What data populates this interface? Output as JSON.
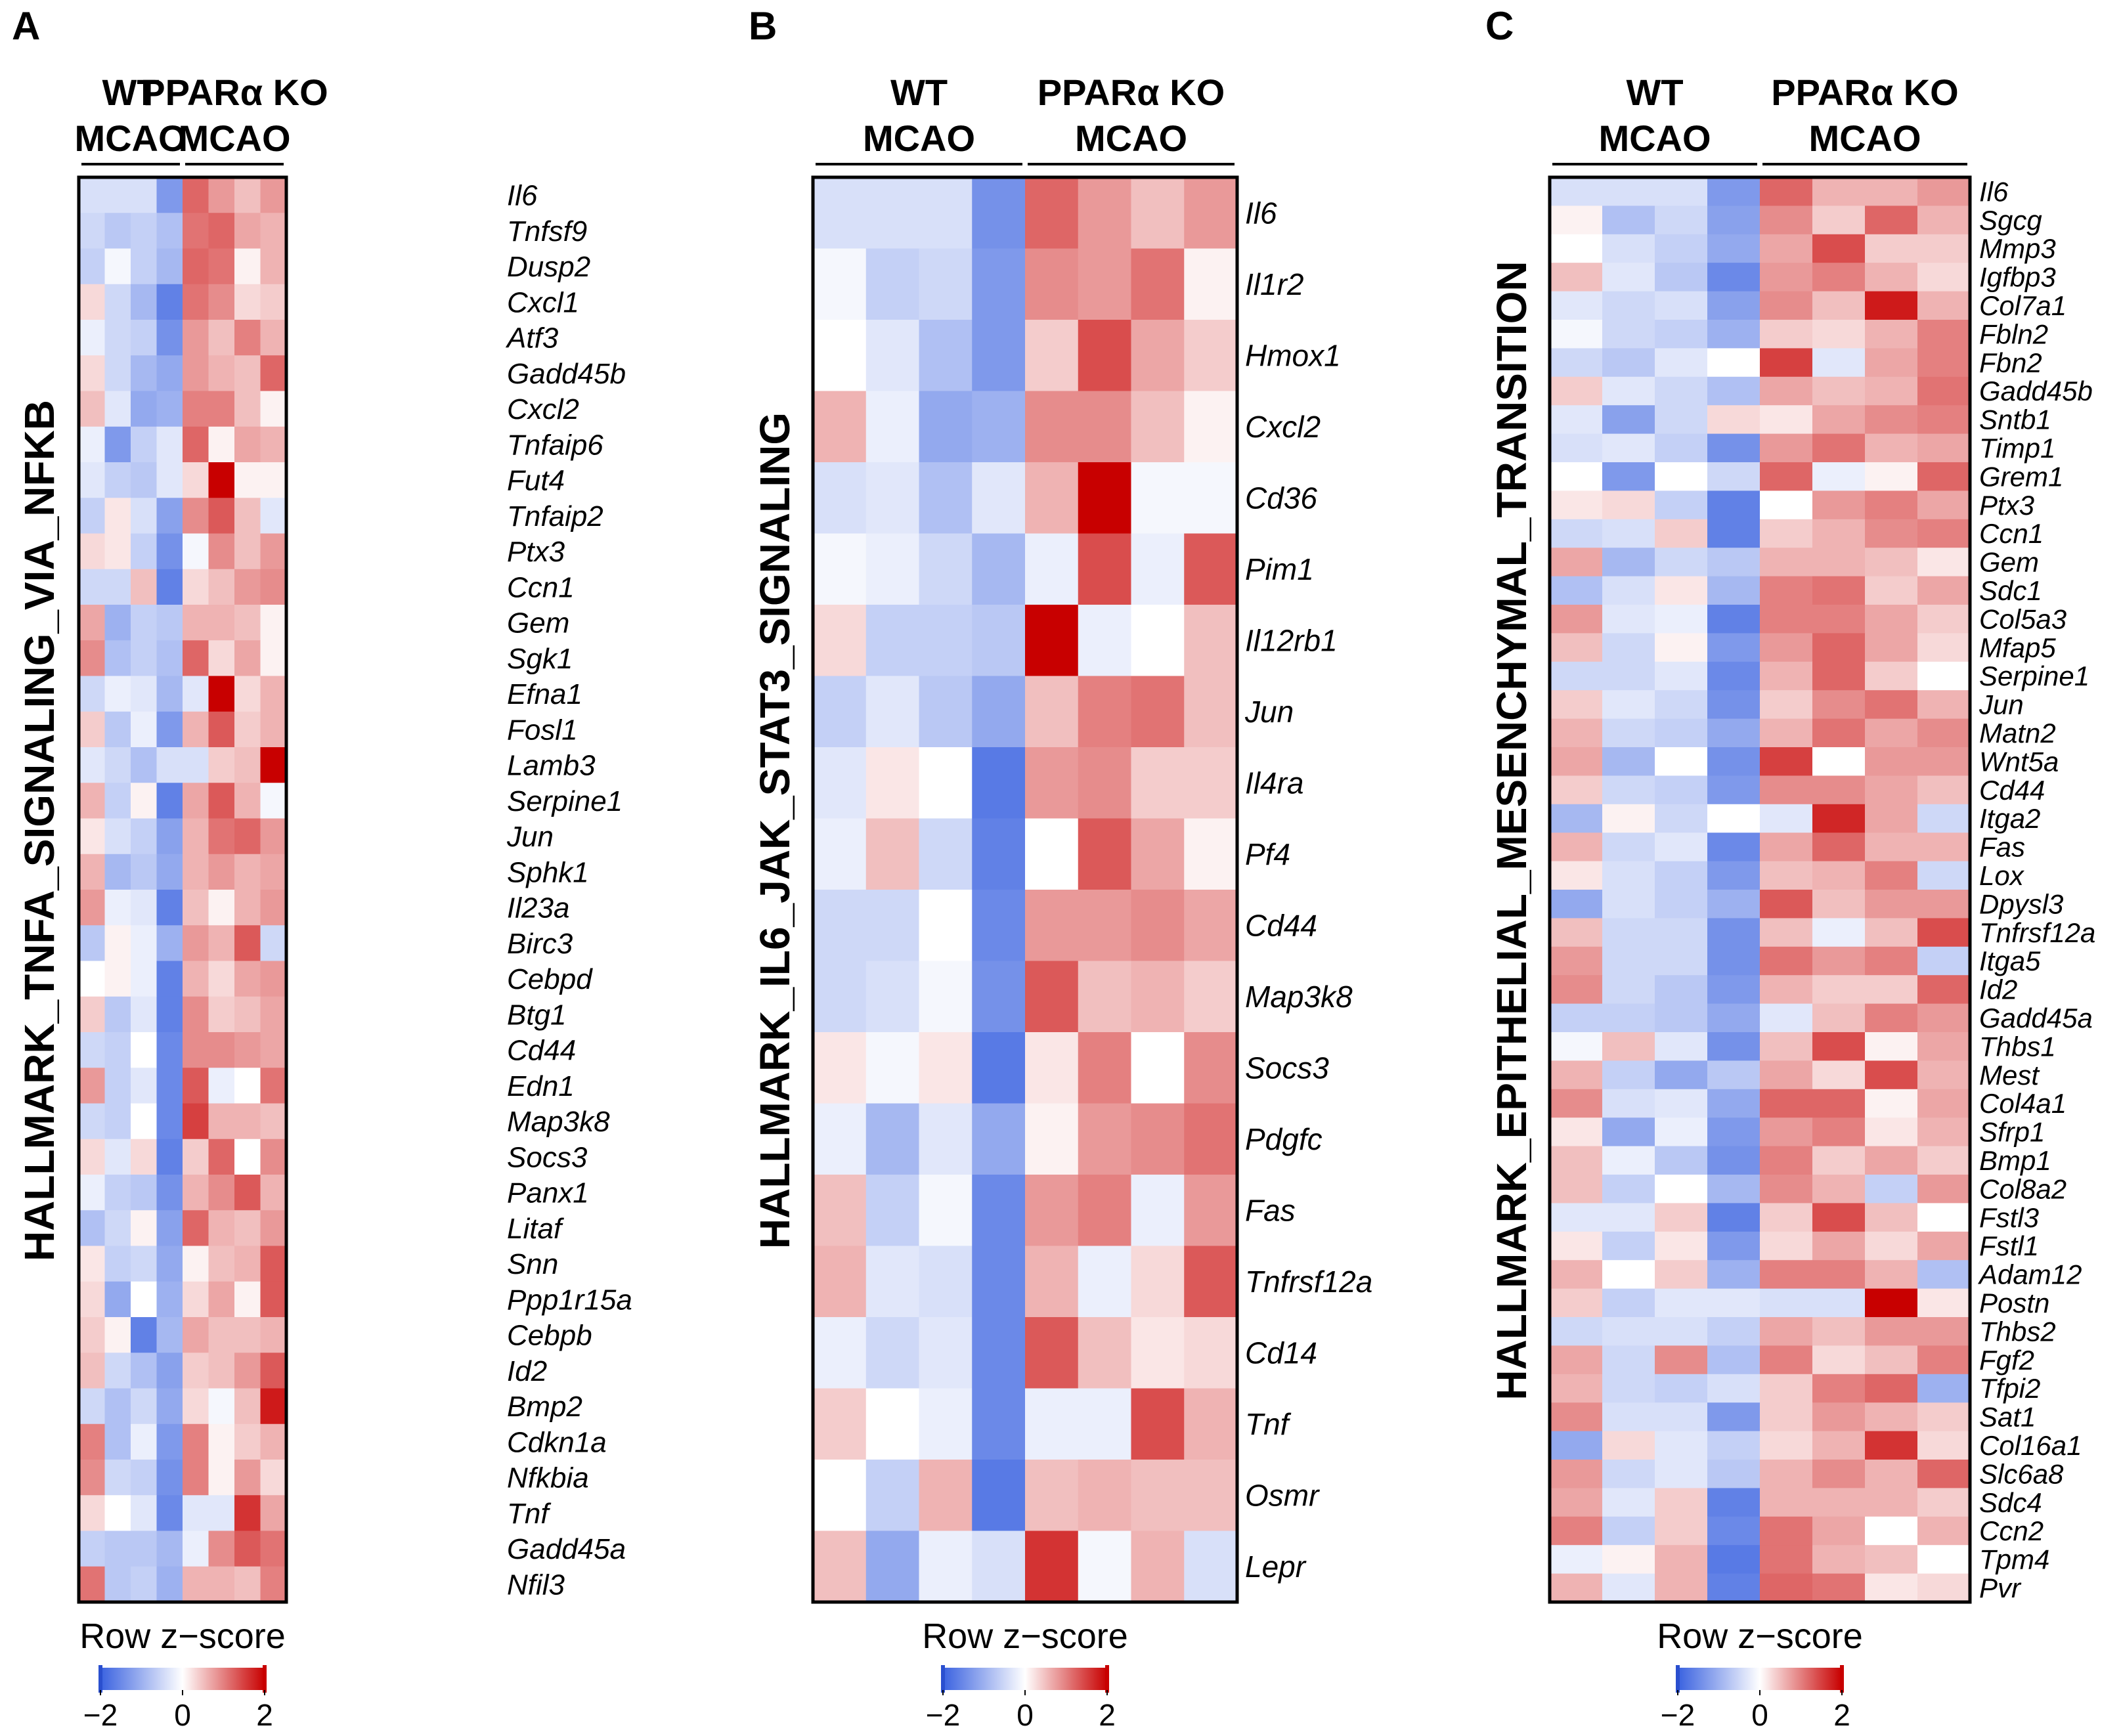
{
  "colors": {
    "low": "#3a62e0",
    "mid": "#ffffff",
    "high": "#c80000",
    "frame": "#000000"
  },
  "legend_title": "Row z−score",
  "legend_ticks": [
    "−2",
    "0",
    "2"
  ],
  "chart_data": [
    {
      "type": "heatmap",
      "panel": "A",
      "title": "HALLMARK_TNFA_SIGNALING_VIA_NFKB",
      "groups": [
        {
          "line1": "WT",
          "line2": "MCAO",
          "columns": 4
        },
        {
          "line1": "PPARα KO",
          "line2": "MCAO",
          "columns": 4
        }
      ],
      "color_range": [
        -2,
        2
      ],
      "rows": [
        "Il6",
        "Tnfsf9",
        "Dusp2",
        "Cxcl1",
        "Atf3",
        "Gadd45b",
        "Cxcl2",
        "Tnfaip6",
        "Fut4",
        "Tnfaip2",
        "Ptx3",
        "Ccn1",
        "Gem",
        "Sgk1",
        "Efna1",
        "Fosl1",
        "Lamb3",
        "Serpine1",
        "Jun",
        "Sphk1",
        "Il23a",
        "Birc3",
        "Cebpd",
        "Btg1",
        "Cd44",
        "Edn1",
        "Map3k8",
        "Socs3",
        "Panx1",
        "Litaf",
        "Snn",
        "Ppp1r15a",
        "Cebpb",
        "Id2",
        "Bmp2",
        "Cdkn1a",
        "Nfkbia",
        "Tnf",
        "Gadd45a",
        "Nfil3"
      ],
      "values": [
        [
          -0.4,
          -0.4,
          -0.4,
          -1.3,
          1.2,
          0.8,
          0.5,
          0.8
        ],
        [
          -0.5,
          -0.7,
          -0.6,
          -0.8,
          1.1,
          1.2,
          0.7,
          0.6
        ],
        [
          -0.6,
          -0.1,
          -0.6,
          -0.9,
          1.2,
          1.1,
          0.1,
          0.6
        ],
        [
          0.3,
          -0.5,
          -0.9,
          -1.6,
          1.1,
          0.9,
          0.3,
          0.4
        ],
        [
          -0.2,
          -0.5,
          -0.6,
          -1.4,
          0.8,
          0.5,
          1.0,
          0.6
        ],
        [
          0.3,
          -0.5,
          -0.9,
          -1.1,
          0.8,
          0.6,
          0.5,
          1.2
        ],
        [
          0.5,
          -0.3,
          -1.1,
          -1.0,
          1.0,
          1.0,
          0.5,
          0.1
        ],
        [
          -0.2,
          -1.3,
          -0.6,
          -0.3,
          1.2,
          0.1,
          0.7,
          0.6
        ],
        [
          -0.3,
          -0.6,
          -0.7,
          -0.3,
          0.3,
          2.0,
          0.1,
          0.1
        ],
        [
          -0.6,
          0.2,
          -0.4,
          -1.2,
          0.9,
          1.3,
          0.5,
          -0.3
        ],
        [
          0.3,
          0.2,
          -0.6,
          -1.4,
          -0.1,
          0.9,
          0.5,
          0.8
        ],
        [
          -0.5,
          -0.5,
          0.5,
          -1.6,
          0.3,
          0.5,
          0.8,
          0.9
        ],
        [
          0.7,
          -1.0,
          -0.6,
          -0.7,
          0.6,
          0.6,
          0.5,
          0.1
        ],
        [
          0.9,
          -0.8,
          -0.6,
          -0.8,
          1.2,
          0.3,
          0.7,
          0.1
        ],
        [
          -0.5,
          -0.2,
          -0.3,
          -0.9,
          -0.3,
          2.0,
          0.3,
          0.6
        ],
        [
          0.4,
          -0.7,
          -0.2,
          -1.3,
          0.6,
          1.3,
          0.4,
          0.6
        ],
        [
          -0.3,
          -0.5,
          -0.8,
          -0.4,
          -0.4,
          0.4,
          0.5,
          2.0
        ],
        [
          0.6,
          -0.6,
          0.1,
          -1.6,
          0.7,
          1.3,
          0.6,
          -0.1
        ],
        [
          0.2,
          -0.4,
          -0.6,
          -1.2,
          0.6,
          1.1,
          1.2,
          0.8
        ],
        [
          0.6,
          -0.9,
          -0.7,
          -1.1,
          0.6,
          0.8,
          0.6,
          0.7
        ],
        [
          0.8,
          -0.2,
          -0.3,
          -1.6,
          0.5,
          0.1,
          0.6,
          0.8
        ],
        [
          -0.7,
          0.1,
          -0.2,
          -1.0,
          0.8,
          0.6,
          1.3,
          -0.5
        ],
        [
          0.0,
          0.1,
          -0.2,
          -1.6,
          0.6,
          0.3,
          0.7,
          0.8
        ],
        [
          0.4,
          -0.7,
          -0.3,
          -1.6,
          0.9,
          0.4,
          0.5,
          0.7
        ],
        [
          -0.5,
          -0.6,
          0.0,
          -1.5,
          0.9,
          0.9,
          0.8,
          0.7
        ],
        [
          0.8,
          -0.6,
          -0.3,
          -1.5,
          1.3,
          -0.2,
          0.0,
          1.1
        ],
        [
          -0.5,
          -0.6,
          0.0,
          -1.5,
          1.5,
          0.6,
          0.6,
          0.5
        ],
        [
          0.3,
          -0.3,
          0.3,
          -1.6,
          0.4,
          1.2,
          0.0,
          0.9
        ],
        [
          -0.2,
          -0.6,
          -0.7,
          -1.4,
          0.6,
          0.9,
          1.3,
          0.6
        ],
        [
          -0.8,
          -0.5,
          0.1,
          -1.2,
          1.2,
          0.6,
          0.5,
          0.8
        ],
        [
          0.2,
          -0.6,
          -0.5,
          -1.1,
          0.1,
          0.5,
          0.6,
          1.3
        ],
        [
          0.3,
          -1.1,
          0.0,
          -1.0,
          0.3,
          0.7,
          0.1,
          1.3
        ],
        [
          0.4,
          0.1,
          -1.6,
          -0.9,
          0.7,
          0.5,
          0.5,
          0.6
        ],
        [
          0.5,
          -0.5,
          -0.8,
          -1.2,
          0.4,
          0.5,
          0.8,
          1.3
        ],
        [
          -0.5,
          -0.8,
          -0.5,
          -1.1,
          0.3,
          -0.1,
          0.5,
          1.8
        ],
        [
          1.0,
          -0.8,
          -0.2,
          -1.3,
          1.0,
          0.1,
          0.4,
          0.6
        ],
        [
          0.9,
          -0.5,
          -0.6,
          -1.4,
          1.0,
          0.1,
          0.8,
          0.3
        ],
        [
          0.3,
          0.0,
          -0.3,
          -1.5,
          -0.3,
          -0.3,
          1.6,
          0.7
        ],
        [
          -0.6,
          -0.7,
          -0.7,
          -0.9,
          -0.2,
          0.9,
          1.3,
          1.1
        ],
        [
          1.1,
          -0.7,
          -0.6,
          -1.0,
          0.6,
          0.6,
          0.5,
          1.0
        ]
      ]
    },
    {
      "type": "heatmap",
      "panel": "B",
      "title": "HALLMARK_IL6_JAK_STAT3_SIGNALING",
      "groups": [
        {
          "line1": "WT",
          "line2": "MCAO",
          "columns": 4
        },
        {
          "line1": "PPARα KO",
          "line2": "MCAO",
          "columns": 4
        }
      ],
      "color_range": [
        -2,
        2
      ],
      "rows": [
        "Il6",
        "Il1r2",
        "Hmox1",
        "Cxcl2",
        "Cd36",
        "Pim1",
        "Il12rb1",
        "Jun",
        "Il4ra",
        "Pf4",
        "Cd44",
        "Map3k8",
        "Socs3",
        "Pdgfc",
        "Fas",
        "Tnfrsf12a",
        "Cd14",
        "Tnf",
        "Osmr",
        "Lepr"
      ],
      "values": [
        [
          -0.4,
          -0.4,
          -0.4,
          -1.4,
          1.2,
          0.8,
          0.5,
          0.8
        ],
        [
          -0.1,
          -0.6,
          -0.5,
          -1.3,
          0.9,
          0.8,
          1.1,
          0.1
        ],
        [
          0.0,
          -0.3,
          -0.8,
          -1.3,
          0.4,
          1.4,
          0.7,
          0.4
        ],
        [
          0.6,
          -0.2,
          -1.1,
          -1.0,
          0.9,
          0.9,
          0.5,
          0.1
        ],
        [
          -0.4,
          -0.3,
          -0.8,
          -0.3,
          0.6,
          2.0,
          -0.1,
          -0.1
        ],
        [
          -0.1,
          -0.2,
          -0.5,
          -0.9,
          -0.2,
          1.4,
          -0.2,
          1.3
        ],
        [
          0.3,
          -0.6,
          -0.6,
          -0.7,
          2.0,
          -0.2,
          0.0,
          0.5
        ],
        [
          -0.6,
          -0.3,
          -0.7,
          -1.1,
          0.5,
          1.0,
          1.1,
          0.5
        ],
        [
          -0.3,
          0.2,
          0.0,
          -1.7,
          0.8,
          0.9,
          0.4,
          0.4
        ],
        [
          -0.2,
          0.5,
          -0.5,
          -1.6,
          0.0,
          1.3,
          0.7,
          0.1
        ],
        [
          -0.5,
          -0.5,
          0.0,
          -1.5,
          0.8,
          0.8,
          0.9,
          0.7
        ],
        [
          -0.5,
          -0.4,
          -0.1,
          -1.4,
          1.3,
          0.5,
          0.6,
          0.4
        ],
        [
          0.2,
          -0.1,
          0.2,
          -1.7,
          0.2,
          1.0,
          0.0,
          0.9
        ],
        [
          -0.2,
          -0.9,
          -0.3,
          -1.1,
          0.1,
          0.8,
          0.9,
          1.1
        ],
        [
          0.5,
          -0.6,
          -0.1,
          -1.5,
          0.8,
          1.0,
          -0.2,
          0.8
        ],
        [
          0.6,
          -0.3,
          -0.4,
          -1.5,
          0.6,
          -0.2,
          0.3,
          1.3
        ],
        [
          -0.2,
          -0.5,
          -0.3,
          -1.5,
          1.3,
          0.5,
          0.2,
          0.3
        ],
        [
          0.4,
          0.0,
          -0.2,
          -1.5,
          -0.2,
          -0.2,
          1.4,
          0.6
        ],
        [
          0.0,
          -0.6,
          0.6,
          -1.7,
          0.5,
          0.6,
          0.5,
          0.5
        ],
        [
          0.5,
          -1.1,
          -0.2,
          -0.4,
          1.6,
          -0.1,
          0.6,
          -0.4
        ]
      ]
    },
    {
      "type": "heatmap",
      "panel": "C",
      "title": "HALLMARK_EPITHELIAL_MESENCHYMAL_TRANSITION",
      "groups": [
        {
          "line1": "WT",
          "line2": "MCAO",
          "columns": 4
        },
        {
          "line1": "PPARα KO",
          "line2": "MCAO",
          "columns": 4
        }
      ],
      "color_range": [
        -2,
        2
      ],
      "rows": [
        "Il6",
        "Sgcg",
        "Mmp3",
        "Igfbp3",
        "Col7a1",
        "Fbln2",
        "Fbn2",
        "Gadd45b",
        "Sntb1",
        "Timp1",
        "Grem1",
        "Ptx3",
        "Ccn1",
        "Gem",
        "Sdc1",
        "Col5a3",
        "Mfap5",
        "Serpine1",
        "Jun",
        "Matn2",
        "Wnt5a",
        "Cd44",
        "Itga2",
        "Fas",
        "Lox",
        "Dpysl3",
        "Tnfrsf12a",
        "Itga5",
        "Id2",
        "Gadd45a",
        "Thbs1",
        "Mest",
        "Col4a1",
        "Sfrp1",
        "Bmp1",
        "Col8a2",
        "Fstl3",
        "Fstl1",
        "Adam12",
        "Postn",
        "Thbs2",
        "Fgf2",
        "Tfpi2",
        "Sat1",
        "Col16a1",
        "Slc6a8",
        "Sdc4",
        "Ccn2",
        "Tpm4",
        "Pvr"
      ],
      "values": [
        [
          -0.4,
          -0.4,
          -0.4,
          -1.3,
          1.2,
          0.6,
          0.6,
          0.8
        ],
        [
          0.1,
          -0.8,
          -0.5,
          -1.2,
          0.9,
          0.4,
          1.2,
          0.6
        ],
        [
          0.0,
          -0.4,
          -0.6,
          -1.1,
          0.7,
          1.4,
          0.4,
          0.4
        ],
        [
          0.5,
          -0.3,
          -0.7,
          -1.5,
          0.8,
          1.0,
          0.6,
          0.3
        ],
        [
          -0.3,
          -0.5,
          -0.4,
          -1.2,
          0.9,
          0.5,
          1.8,
          0.6
        ],
        [
          -0.1,
          -0.5,
          -0.6,
          -1.0,
          0.4,
          0.3,
          0.6,
          1.0
        ],
        [
          -0.5,
          -0.7,
          -0.3,
          0.0,
          1.5,
          -0.3,
          0.7,
          1.0
        ],
        [
          0.4,
          -0.3,
          -0.5,
          -0.8,
          0.7,
          0.5,
          0.6,
          1.1
        ],
        [
          -0.3,
          -1.2,
          -0.5,
          0.3,
          0.2,
          0.7,
          0.9,
          1.0
        ],
        [
          -0.4,
          -0.3,
          -0.6,
          -1.4,
          0.8,
          1.1,
          0.6,
          0.7
        ],
        [
          0.0,
          -1.3,
          0.0,
          -0.5,
          1.2,
          -0.2,
          0.1,
          1.2
        ],
        [
          0.2,
          0.3,
          -0.6,
          -1.6,
          0.0,
          0.8,
          1.0,
          0.7
        ],
        [
          -0.5,
          -0.4,
          0.4,
          -1.6,
          0.4,
          0.6,
          0.9,
          1.0
        ],
        [
          0.7,
          -0.9,
          -0.5,
          -0.7,
          0.6,
          0.6,
          0.5,
          0.2
        ],
        [
          -0.8,
          -0.4,
          0.2,
          -0.9,
          1.0,
          1.1,
          0.4,
          0.7
        ],
        [
          0.8,
          -0.3,
          -0.2,
          -1.6,
          1.0,
          1.0,
          0.7,
          0.4
        ],
        [
          0.5,
          -0.5,
          0.1,
          -1.3,
          0.8,
          1.2,
          0.7,
          0.3
        ],
        [
          -0.5,
          -0.5,
          -0.3,
          -1.5,
          0.6,
          1.2,
          0.4,
          0.0
        ],
        [
          0.4,
          -0.3,
          -0.5,
          -1.4,
          0.4,
          0.9,
          1.1,
          0.6
        ],
        [
          0.6,
          -0.5,
          -0.6,
          -1.1,
          0.6,
          1.1,
          0.7,
          0.9
        ],
        [
          0.7,
          -0.9,
          0.0,
          -1.4,
          1.5,
          0.0,
          0.8,
          0.8
        ],
        [
          0.4,
          -0.5,
          -0.6,
          -1.3,
          0.9,
          0.9,
          0.7,
          0.5
        ],
        [
          -0.9,
          0.1,
          -0.5,
          0.0,
          -0.3,
          1.7,
          0.7,
          -0.5
        ],
        [
          0.6,
          -0.5,
          -0.3,
          -1.5,
          0.7,
          1.2,
          0.6,
          0.6
        ],
        [
          0.2,
          -0.4,
          -0.6,
          -1.3,
          0.5,
          0.6,
          1.0,
          -0.5
        ],
        [
          -1.1,
          -0.4,
          -0.6,
          -1.0,
          1.3,
          0.5,
          0.8,
          0.8
        ],
        [
          0.5,
          -0.5,
          -0.5,
          -1.4,
          0.5,
          -0.2,
          0.5,
          1.4
        ],
        [
          0.8,
          -0.5,
          -0.5,
          -1.4,
          1.1,
          0.8,
          1.0,
          -0.6
        ],
        [
          0.9,
          -0.5,
          -0.7,
          -1.3,
          0.6,
          0.4,
          0.4,
          1.2
        ],
        [
          -0.6,
          -0.6,
          -0.7,
          -1.1,
          -0.3,
          0.5,
          1.0,
          0.8
        ],
        [
          -0.1,
          0.5,
          -0.3,
          -1.4,
          0.5,
          1.4,
          0.1,
          0.7
        ],
        [
          0.6,
          -0.6,
          -1.1,
          -0.7,
          0.7,
          0.3,
          1.4,
          0.6
        ],
        [
          0.9,
          -0.4,
          -0.3,
          -1.1,
          1.2,
          1.2,
          0.1,
          0.7
        ],
        [
          0.2,
          -1.1,
          -0.2,
          -1.3,
          0.8,
          1.0,
          0.2,
          0.6
        ],
        [
          0.5,
          -0.2,
          -0.7,
          -1.4,
          1.0,
          0.4,
          0.7,
          0.4
        ],
        [
          0.5,
          -0.6,
          0.0,
          -0.9,
          0.9,
          0.6,
          -0.6,
          0.8
        ],
        [
          -0.3,
          -0.3,
          0.4,
          -1.6,
          0.4,
          1.4,
          0.5,
          0.0
        ],
        [
          0.2,
          -0.6,
          0.2,
          -1.3,
          0.3,
          0.7,
          0.3,
          0.7
        ],
        [
          0.6,
          0.0,
          0.4,
          -1.0,
          1.0,
          1.0,
          0.6,
          -0.8
        ],
        [
          0.4,
          -0.6,
          -0.3,
          -0.3,
          -0.4,
          -0.4,
          2.0,
          0.2
        ],
        [
          -0.5,
          -0.4,
          -0.4,
          -0.6,
          0.7,
          0.5,
          0.8,
          0.8
        ],
        [
          0.7,
          -0.5,
          0.9,
          -0.8,
          1.0,
          0.3,
          0.5,
          1.0
        ],
        [
          0.6,
          -0.5,
          -0.6,
          -0.4,
          0.4,
          1.0,
          1.2,
          -1.0
        ],
        [
          0.9,
          -0.4,
          -0.4,
          -1.3,
          0.4,
          0.8,
          0.6,
          0.4
        ],
        [
          -1.1,
          0.3,
          -0.3,
          -0.6,
          0.3,
          0.6,
          1.6,
          0.3
        ],
        [
          0.8,
          -0.5,
          -0.3,
          -0.7,
          0.6,
          0.9,
          0.6,
          1.2
        ],
        [
          0.7,
          -0.3,
          0.4,
          -1.6,
          0.6,
          0.6,
          0.6,
          0.4
        ],
        [
          1.0,
          -0.6,
          0.4,
          -1.5,
          1.1,
          0.7,
          0.0,
          0.6
        ],
        [
          -0.2,
          0.1,
          0.6,
          -1.7,
          1.1,
          0.6,
          0.5,
          0.0
        ],
        [
          0.6,
          -0.3,
          0.6,
          -1.6,
          1.2,
          1.1,
          0.2,
          0.3
        ]
      ]
    }
  ]
}
